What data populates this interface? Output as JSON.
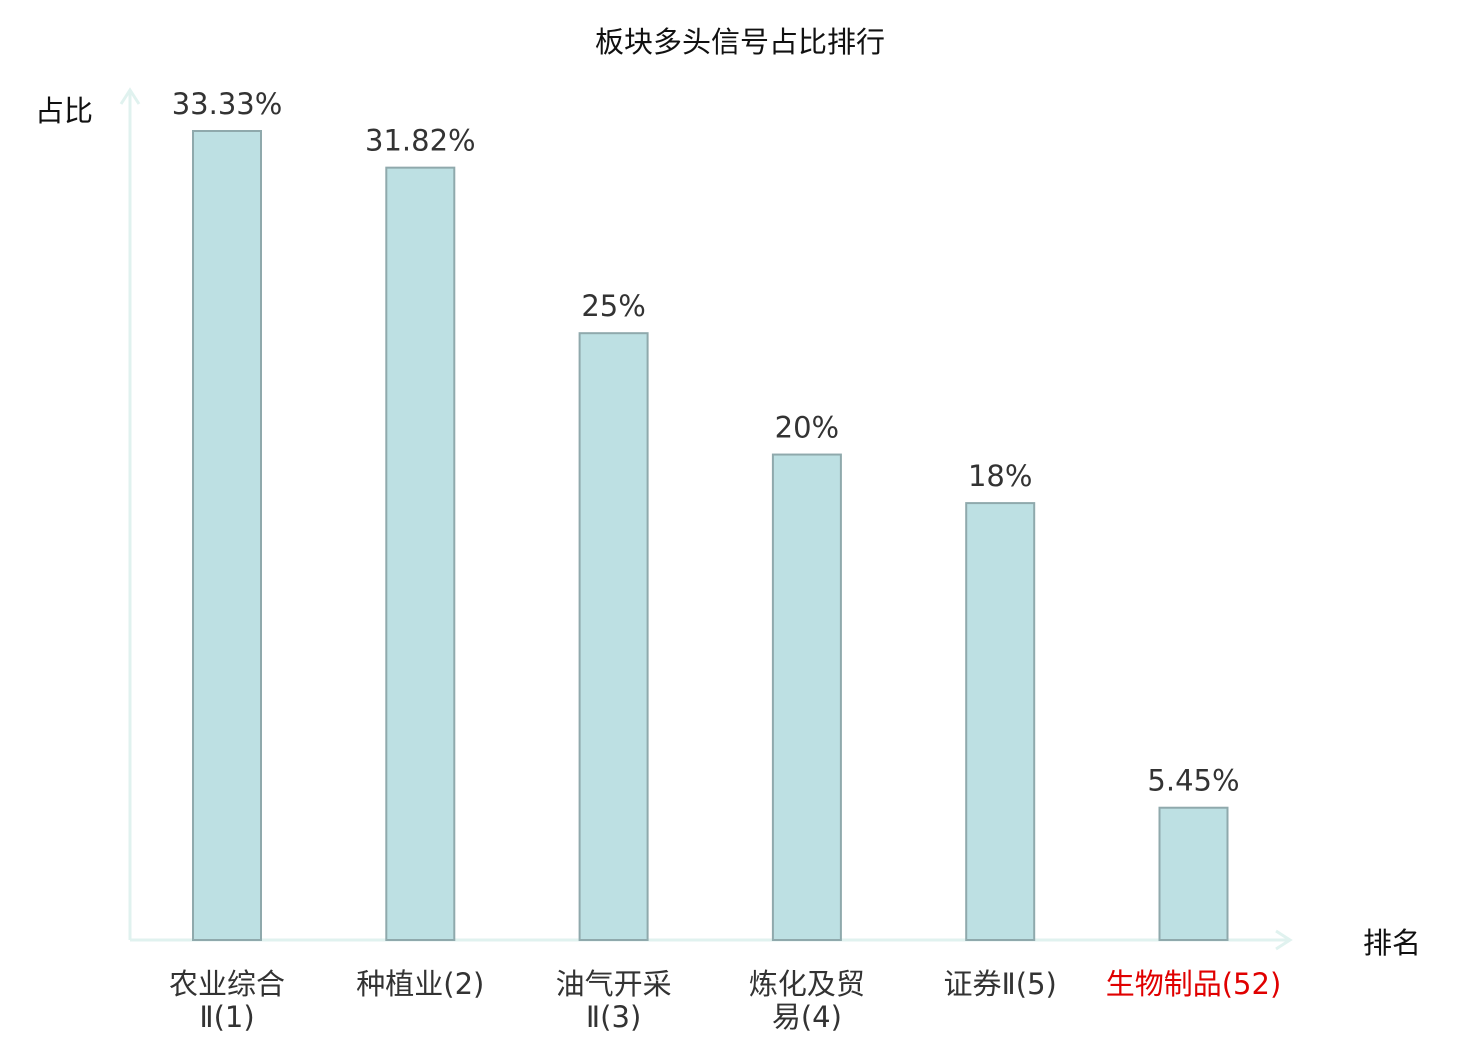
{
  "chart_data": {
    "type": "bar",
    "title": "板块多头信号占比排行",
    "xlabel": "排名",
    "ylabel": "占比",
    "ylim": [
      0,
      35
    ],
    "grid": false,
    "legend": "none",
    "categories": [
      {
        "lines": [
          "农业综合",
          "Ⅱ(1)"
        ],
        "highlight": false
      },
      {
        "lines": [
          "种植业(2)"
        ],
        "highlight": false
      },
      {
        "lines": [
          "油气开采",
          "Ⅱ(3)"
        ],
        "highlight": false
      },
      {
        "lines": [
          "炼化及贸",
          "易(4)"
        ],
        "highlight": false
      },
      {
        "lines": [
          "证券Ⅱ(5)"
        ],
        "highlight": false
      },
      {
        "lines": [
          "生物制品(52)"
        ],
        "highlight": true
      }
    ],
    "values": [
      33.33,
      31.82,
      25,
      20,
      18,
      5.45
    ],
    "value_labels": [
      "33.33%",
      "31.82%",
      "25%",
      "20%",
      "18%",
      "5.45%"
    ],
    "colors": {
      "bar_fill": "#bde0e3",
      "bar_stroke": "#8fa9ac",
      "axis": "#e0f2ef",
      "text": "#333333",
      "title": "#111111",
      "highlight": "#e00000"
    }
  }
}
